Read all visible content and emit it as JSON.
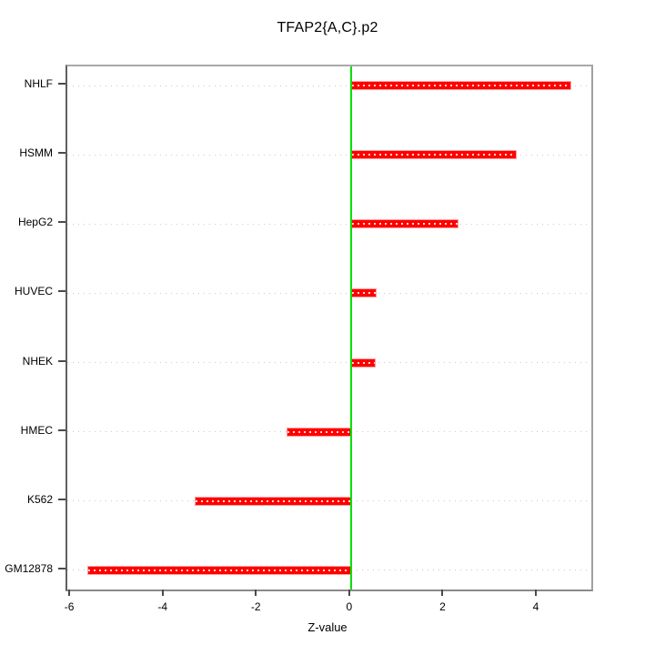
{
  "title": "TFAP2{A,C}.p2",
  "xlabel": "Z-value",
  "colors": {
    "bar_fill": "#ff0000",
    "bar_edge": "#ff9e9e",
    "zero_line": "#00e200",
    "gridline": "#c9c9c9",
    "box_border": "#8a8a8a",
    "tick": "#4a4a4a",
    "background": "#ffffff"
  },
  "chart_data": {
    "type": "bar",
    "orientation": "horizontal",
    "title": "TFAP2{A,C}.p2",
    "xlabel": "Z-value",
    "ylabel": "",
    "categories": [
      "NHLF",
      "HSMM",
      "HepG2",
      "HUVEC",
      "NHEK",
      "HMEC",
      "K562",
      "GM12878"
    ],
    "values": [
      4.73,
      3.56,
      2.3,
      0.55,
      0.52,
      -1.39,
      -3.36,
      -5.66
    ],
    "x_ticks": [
      -6,
      -4,
      -2,
      0,
      2,
      4
    ],
    "x_tick_labels": [
      "-6",
      "-4",
      "-2",
      "0",
      "2",
      "4"
    ],
    "xlim": [
      -6.08,
      5.15
    ],
    "ylim": [
      0.72,
      8.28
    ],
    "zero_reference_line": 0,
    "grid": "dotted-horizontal",
    "legend": "none"
  }
}
